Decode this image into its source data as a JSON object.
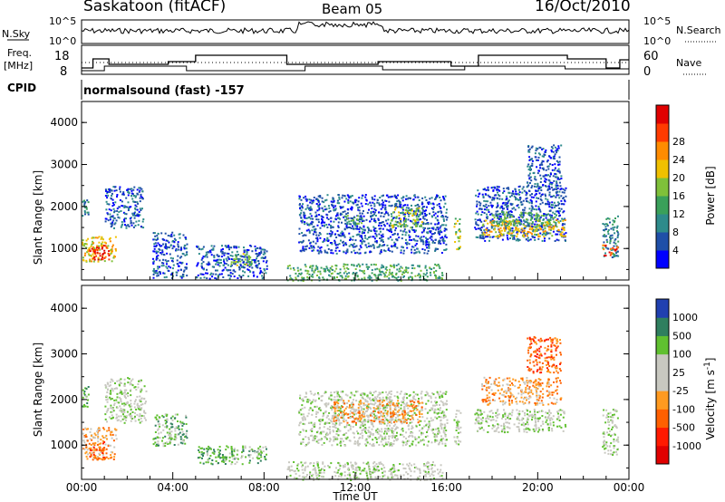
{
  "header": {
    "station": "Saskatoon (fitACF)",
    "beam": "Beam 05",
    "date": "16/Oct/2010"
  },
  "noise_panel": {
    "left_label": "N.Sky",
    "right_label": "N.Search",
    "left_ticks": [
      "10^5",
      "10^0"
    ],
    "right_ticks": [
      "10^5",
      "10^0"
    ]
  },
  "freq_panel": {
    "left_label_line1": "Freq.",
    "left_label_line2": "[MHz]",
    "right_label": "Nave",
    "left_ticks": [
      "18",
      "8"
    ],
    "right_ticks": [
      "60",
      "0"
    ]
  },
  "cpid": {
    "label": "CPID",
    "value": "normalsound (fast) -157"
  },
  "colors": {
    "power_scale": [
      "#0000ff",
      "#1f4fa8",
      "#2e8b8b",
      "#3aa05a",
      "#7fc03a",
      "#f0c000",
      "#ff8c00",
      "#ff3b00",
      "#e00000"
    ],
    "velocity_scale": [
      "#2040b0",
      "#2f7f5f",
      "#60c030",
      "#c8c8c0",
      "#c8c8c0",
      "#ff9a20",
      "#ff6000",
      "#ff1a00",
      "#e00000"
    ]
  },
  "chart_data": [
    {
      "type": "heatmap",
      "title": "",
      "parameter": "Power",
      "xlabel": "",
      "ylabel": "Slant Range [km]",
      "ylim": [
        250,
        4500
      ],
      "y_ticks": [
        "1000",
        "2000",
        "3000",
        "4000"
      ],
      "colorbar_label": "Power [dB]",
      "colorbar_ticks": [
        "4",
        "8",
        "12",
        "16",
        "20",
        "24",
        "28"
      ],
      "regions": [
        {
          "t0": 0.0,
          "t1": 0.3,
          "r0": 1800,
          "r1": 2200,
          "level": 2
        },
        {
          "t0": 0.0,
          "t1": 1.5,
          "r0": 700,
          "r1": 1300,
          "level": 5
        },
        {
          "t0": 0.3,
          "t1": 1.2,
          "r0": 750,
          "r1": 1100,
          "level": 8
        },
        {
          "t0": 1.0,
          "t1": 2.7,
          "r0": 1500,
          "r1": 2500,
          "level": 1
        },
        {
          "t0": 3.1,
          "t1": 4.6,
          "r0": 300,
          "r1": 1400,
          "level": 1
        },
        {
          "t0": 5.0,
          "t1": 8.1,
          "r0": 300,
          "r1": 1100,
          "level": 1
        },
        {
          "t0": 6.5,
          "t1": 7.5,
          "r0": 600,
          "r1": 900,
          "level": 4
        },
        {
          "t0": 9.0,
          "t1": 15.8,
          "r0": 250,
          "r1": 650,
          "level": 3
        },
        {
          "t0": 9.5,
          "t1": 16.0,
          "r0": 900,
          "r1": 2300,
          "level": 1
        },
        {
          "t0": 13.5,
          "t1": 14.9,
          "r0": 1500,
          "r1": 2000,
          "level": 4
        },
        {
          "t0": 11.5,
          "t1": 12.5,
          "r0": 1600,
          "r1": 1800,
          "level": 3
        },
        {
          "t0": 16.3,
          "t1": 16.6,
          "r0": 1000,
          "r1": 1800,
          "level": 4
        },
        {
          "t0": 17.2,
          "t1": 21.2,
          "r0": 1200,
          "r1": 2500,
          "level": 1
        },
        {
          "t0": 17.5,
          "t1": 21.2,
          "r0": 1300,
          "r1": 1700,
          "level": 5
        },
        {
          "t0": 18.0,
          "t1": 20.8,
          "r0": 1550,
          "r1": 1900,
          "level": 3
        },
        {
          "t0": 19.5,
          "t1": 21.0,
          "r0": 2400,
          "r1": 3500,
          "level": 1
        },
        {
          "t0": 22.8,
          "t1": 23.5,
          "r0": 800,
          "r1": 1800,
          "level": 2
        },
        {
          "t0": 22.8,
          "t1": 23.5,
          "r0": 850,
          "r1": 1100,
          "level": 7
        }
      ]
    },
    {
      "type": "heatmap",
      "title": "",
      "parameter": "Velocity",
      "xlabel": "Time UT",
      "ylabel": "Slant Range [km]",
      "ylim": [
        250,
        4500
      ],
      "y_ticks": [
        "1000",
        "2000",
        "3000",
        "4000"
      ],
      "x_ticks": [
        "00:00",
        "04:00",
        "08:00",
        "12:00",
        "16:00",
        "20:00",
        "00:00"
      ],
      "xlim": [
        0,
        24
      ],
      "colorbar_label": "Velocity [m s",
      "colorbar_label_sup": "-1",
      "colorbar_label_end": "]",
      "colorbar_ticks": [
        "1000",
        "500",
        "100",
        "25",
        "-25",
        "-100",
        "-500",
        "-1000"
      ],
      "regions": [
        {
          "t0": 0.0,
          "t1": 0.3,
          "r0": 1800,
          "r1": 2300,
          "level": 2
        },
        {
          "t0": 0.0,
          "t1": 1.5,
          "r0": 700,
          "r1": 1400,
          "level": 5
        },
        {
          "t0": 0.3,
          "t1": 1.0,
          "r0": 700,
          "r1": 1100,
          "level": 6
        },
        {
          "t0": 1.0,
          "t1": 2.8,
          "r0": 1500,
          "r1": 2500,
          "level": 3
        },
        {
          "t0": 3.1,
          "t1": 4.6,
          "r0": 1000,
          "r1": 1700,
          "level": 2
        },
        {
          "t0": 5.0,
          "t1": 8.1,
          "r0": 600,
          "r1": 1000,
          "level": 2
        },
        {
          "t0": 9.0,
          "t1": 15.8,
          "r0": 250,
          "r1": 650,
          "level": 3
        },
        {
          "t0": 9.5,
          "t1": 16.0,
          "r0": 1000,
          "r1": 2200,
          "level": 3
        },
        {
          "t0": 11.0,
          "t1": 14.9,
          "r0": 1500,
          "r1": 2000,
          "level": 5
        },
        {
          "t0": 16.3,
          "t1": 16.6,
          "r0": 1000,
          "r1": 1800,
          "level": 3
        },
        {
          "t0": 17.2,
          "t1": 21.2,
          "r0": 1300,
          "r1": 1800,
          "level": 3
        },
        {
          "t0": 17.5,
          "t1": 21.0,
          "r0": 1900,
          "r1": 2500,
          "level": 5
        },
        {
          "t0": 19.5,
          "t1": 21.0,
          "r0": 2600,
          "r1": 3400,
          "level": 6
        },
        {
          "t0": 22.8,
          "t1": 23.5,
          "r0": 800,
          "r1": 1800,
          "level": 3
        }
      ]
    }
  ]
}
